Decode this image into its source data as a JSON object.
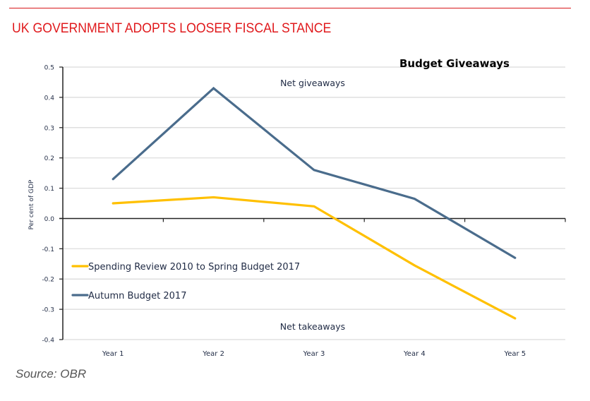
{
  "page": {
    "headline": "UK GOVERNMENT ADOPTS LOOSER FISCAL STANCE",
    "source": "Source: OBR",
    "colors": {
      "headline": "#e0191c",
      "rule": "#d7191c"
    }
  },
  "chart_data": {
    "type": "line",
    "title": "Budget Giveaways",
    "xlabel": "",
    "ylabel": "Per cent of GDP",
    "categories": [
      "Year 1",
      "Year 2",
      "Year 3",
      "Year 4",
      "Year 5"
    ],
    "ylim": [
      -0.4,
      0.5
    ],
    "yticks": [
      0.5,
      0.4,
      0.3,
      0.2,
      0.1,
      0.0,
      -0.1,
      -0.2,
      -0.3,
      -0.4
    ],
    "ytick_labels": [
      "0.5",
      "0.4",
      "0.3",
      "0.2",
      "0.1",
      "0.0",
      "-0.1",
      "-0.2",
      "-0.3",
      "-0.4"
    ],
    "grid": true,
    "legend_position": "lower-left",
    "annotations": {
      "top": "Net giveaways",
      "bottom": "Net takeaways"
    },
    "series": [
      {
        "name": "Spending Review 2010 to Spring Budget 2017",
        "color": "#ffc000",
        "values": [
          0.05,
          0.07,
          0.04,
          -0.155,
          -0.33
        ]
      },
      {
        "name": "Autumn Budget 2017",
        "color": "#4a6c8c",
        "values": [
          0.13,
          0.43,
          0.16,
          0.065,
          -0.13
        ]
      }
    ]
  }
}
